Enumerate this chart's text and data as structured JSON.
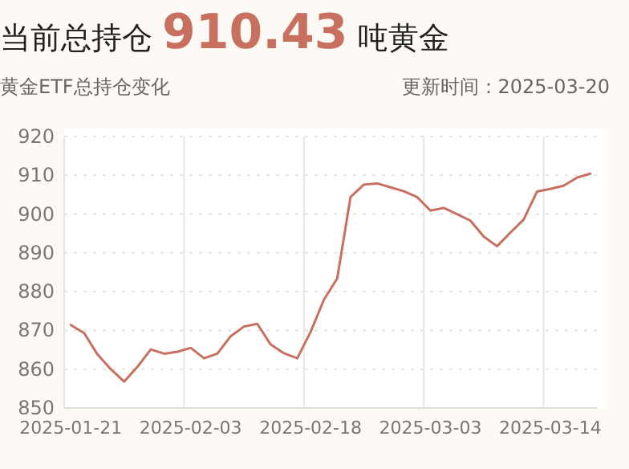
{
  "chart_data": {
    "type": "line",
    "title": "当前总持仓 910.43 吨黄金",
    "subtitle": "黄金ETF总持仓变化",
    "annotations": [
      "更新时间：2025-03-20"
    ],
    "categories": [
      "2025-01-21",
      null,
      null,
      null,
      null,
      null,
      null,
      null,
      null,
      "2025-02-03",
      null,
      null,
      null,
      null,
      null,
      null,
      null,
      null,
      "2025-02-18",
      null,
      null,
      null,
      null,
      null,
      null,
      null,
      null,
      "2025-03-03",
      null,
      null,
      null,
      null,
      null,
      null,
      null,
      null,
      "2025-03-14",
      null,
      null,
      null
    ],
    "series": [
      {
        "color": "#c8705f",
        "values": [
          871.4,
          869.3,
          863.8,
          860,
          856.8,
          860.6,
          865.1,
          864,
          864.5,
          865.5,
          862.8,
          864,
          868.5,
          871,
          871.7,
          866.4,
          864.1,
          862.8,
          869.6,
          877.9,
          883.4,
          904.4,
          907.6,
          907.9,
          906.9,
          905.9,
          904.4,
          900.9,
          901.6,
          900,
          898.3,
          894.2,
          891.7,
          895.2,
          898.6,
          905.8,
          906.5,
          907.3,
          909.4,
          910.43
        ]
      }
    ],
    "ylim": [
      850,
      920
    ],
    "yticks": [
      850,
      860,
      870,
      880,
      890,
      900,
      910,
      920
    ],
    "grid": true,
    "marker": "none",
    "line_style": "solid"
  }
}
